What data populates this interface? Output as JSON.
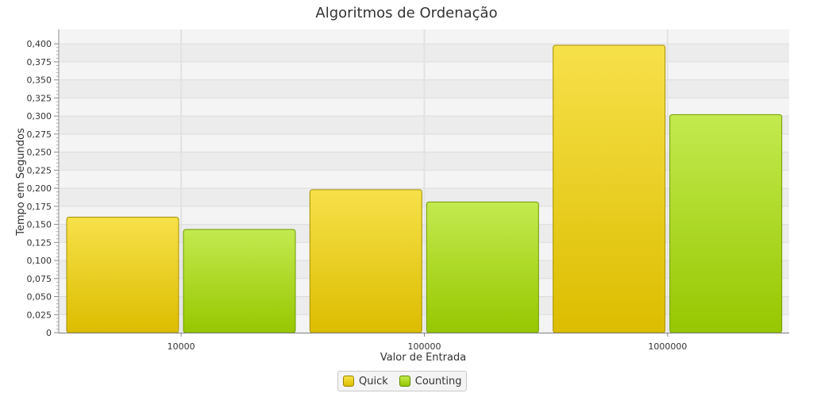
{
  "chart_data": {
    "type": "bar",
    "title": "Algoritmos de Ordenação",
    "xlabel": "Valor de Entrada",
    "ylabel": "Tempo em Segundos",
    "categories": [
      "10000",
      "100000",
      "1000000"
    ],
    "series": [
      {
        "name": "Quick",
        "values": [
          0.16,
          0.198,
          0.398
        ],
        "color_top": "#f7e14a",
        "color_bottom": "#dcbd00",
        "stroke": "#a68f00"
      },
      {
        "name": "Counting",
        "values": [
          0.143,
          0.181,
          0.302
        ],
        "color_top": "#c3ea4f",
        "color_bottom": "#97c700",
        "stroke": "#6e9a00"
      }
    ],
    "ylim": [
      0,
      0.42
    ],
    "yticks": [
      0,
      0.025,
      0.05,
      0.075,
      0.1,
      0.125,
      0.15,
      0.175,
      0.2,
      0.225,
      0.25,
      0.275,
      0.3,
      0.325,
      0.35,
      0.375,
      0.4
    ],
    "ytick_labels": [
      "0",
      "0,025",
      "0,050",
      "0,075",
      "0,100",
      "0,125",
      "0,150",
      "0,175",
      "0,200",
      "0,225",
      "0,250",
      "0,275",
      "0,300",
      "0,325",
      "0,350",
      "0,375",
      "0,400"
    ],
    "grid": true,
    "legend_position": "bottom"
  }
}
